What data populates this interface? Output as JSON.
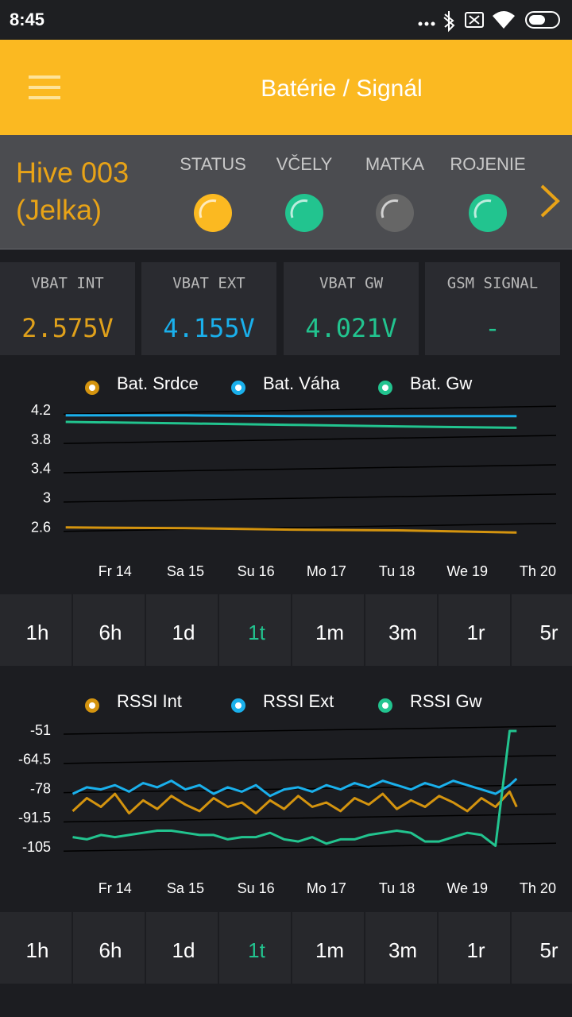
{
  "status_bar": {
    "time": "8:45"
  },
  "app_bar": {
    "title": "Batérie / Signál"
  },
  "hive": {
    "name": [
      "Hive 003",
      "(Jelka)"
    ],
    "indicators": [
      {
        "label": "STATUS",
        "color": "#fbb921"
      },
      {
        "label": "VČELY",
        "color": "#22c48f"
      },
      {
        "label": "MATKA",
        "color": "#666666"
      },
      {
        "label": "ROJENIE",
        "color": "#22c48f"
      }
    ]
  },
  "metrics": [
    {
      "label": "VBAT INT",
      "value": "2.575V",
      "color": "#e0a11b"
    },
    {
      "label": "VBAT EXT",
      "value": "4.155V",
      "color": "#1ab0ec"
    },
    {
      "label": "VBAT GW",
      "value": "4.021V",
      "color": "#22c48f"
    },
    {
      "label": "GSM SIGNAL",
      "value": "-",
      "color": "#22c48f"
    }
  ],
  "range_options": [
    "1h",
    "6h",
    "1d",
    "1t",
    "1m",
    "3m",
    "1r",
    "5r"
  ],
  "selected_range": 3,
  "chart_data": [
    {
      "type": "line",
      "xlim": [
        -0.73,
        6.26
      ],
      "ylim": [
        2.25,
        4.3
      ],
      "yticks": [
        2.6,
        3,
        3.4,
        3.8,
        4.2
      ],
      "grid": true,
      "xticks": [
        {
          "value": 0,
          "label": "Fr 14"
        },
        {
          "value": 1,
          "label": "Sa 15"
        },
        {
          "value": 2,
          "label": "Su 16"
        },
        {
          "value": 3,
          "label": "Mo 17"
        },
        {
          "value": 4,
          "label": "Tu 18"
        },
        {
          "value": 5,
          "label": "We 19"
        },
        {
          "value": 6,
          "label": "Th 20"
        }
      ],
      "x": [
        -0.7,
        1,
        2.5,
        4,
        5.7
      ],
      "series": [
        {
          "name": "Bat. Srdce",
          "color": "#d4940f",
          "values": [
            2.61,
            2.6,
            2.58,
            2.57,
            2.54
          ]
        },
        {
          "name": "Bat. Váha",
          "color": "#1ab0ec",
          "values": [
            4.14,
            4.14,
            4.13,
            4.13,
            4.13
          ]
        },
        {
          "name": "Bat. Gw",
          "color": "#22c48f",
          "values": [
            4.05,
            4.03,
            4.01,
            3.99,
            3.97
          ]
        }
      ]
    },
    {
      "type": "line",
      "xlim": [
        -0.73,
        6.26
      ],
      "ylim": [
        -117,
        -45.5
      ],
      "yticks": [
        -105,
        -91.5,
        -78,
        -64.5,
        -51
      ],
      "grid": true,
      "xticks": [
        {
          "value": 0,
          "label": "Fr 14"
        },
        {
          "value": 1,
          "label": "Sa 15"
        },
        {
          "value": 2,
          "label": "Su 16"
        },
        {
          "value": 3,
          "label": "Mo 17"
        },
        {
          "value": 4,
          "label": "Tu 18"
        },
        {
          "value": 5,
          "label": "We 19"
        },
        {
          "value": 6,
          "label": "Th 20"
        }
      ],
      "x": [
        -0.6,
        -0.4,
        -0.2,
        0,
        0.2,
        0.4,
        0.6,
        0.8,
        1,
        1.2,
        1.4,
        1.6,
        1.8,
        2,
        2.2,
        2.4,
        2.6,
        2.8,
        3,
        3.2,
        3.4,
        3.6,
        3.8,
        4,
        4.2,
        4.4,
        4.6,
        4.8,
        5,
        5.2,
        5.4,
        5.6,
        5.7
      ],
      "series": [
        {
          "name": "RSSI Int",
          "color": "#d4940f",
          "values": [
            -88,
            -82,
            -86,
            -80,
            -89,
            -83,
            -87,
            -81,
            -85,
            -88,
            -82,
            -86,
            -84,
            -89,
            -83,
            -87,
            -81,
            -86,
            -84,
            -88,
            -82,
            -85,
            -80,
            -87,
            -83,
            -86,
            -81,
            -84,
            -88,
            -82,
            -86,
            -79,
            -86
          ]
        },
        {
          "name": "RSSI Ext",
          "color": "#1ab0ec",
          "values": [
            -80,
            -77,
            -78,
            -76,
            -79,
            -75,
            -77,
            -74,
            -78,
            -76,
            -80,
            -77,
            -79,
            -76,
            -81,
            -78,
            -77,
            -79,
            -76,
            -78,
            -75,
            -77,
            -74,
            -76,
            -78,
            -75,
            -77,
            -74,
            -76,
            -78,
            -80,
            -76,
            -73
          ]
        },
        {
          "name": "RSSI Gw",
          "color": "#22c48f",
          "values": [
            -100,
            -101,
            -99,
            -100,
            -99,
            -98,
            -97,
            -97,
            -98,
            -99,
            -99,
            -101,
            -100,
            -100,
            -98,
            -101,
            -102,
            -100,
            -103,
            -101,
            -101,
            -99,
            -98,
            -97,
            -98,
            -102,
            -102,
            -100,
            -98,
            -99,
            -104,
            -51,
            -51
          ]
        }
      ]
    }
  ]
}
